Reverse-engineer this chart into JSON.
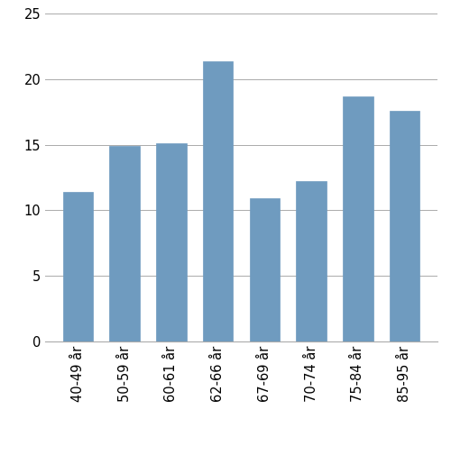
{
  "categories": [
    "40-49 år",
    "50-59 år",
    "60-61 år",
    "62-66 år",
    "67-69 år",
    "70-74 år",
    "75-84 år",
    "85-95 år"
  ],
  "values": [
    11.4,
    14.9,
    15.1,
    21.4,
    10.9,
    12.2,
    18.7,
    17.6
  ],
  "bar_color": "#6f9bbf",
  "ylim": [
    0,
    25
  ],
  "yticks": [
    0,
    5,
    10,
    15,
    20,
    25
  ],
  "grid_color": "#aaaaaa",
  "background_color": "#ffffff",
  "bar_width": 0.65,
  "tick_fontsize": 10.5
}
